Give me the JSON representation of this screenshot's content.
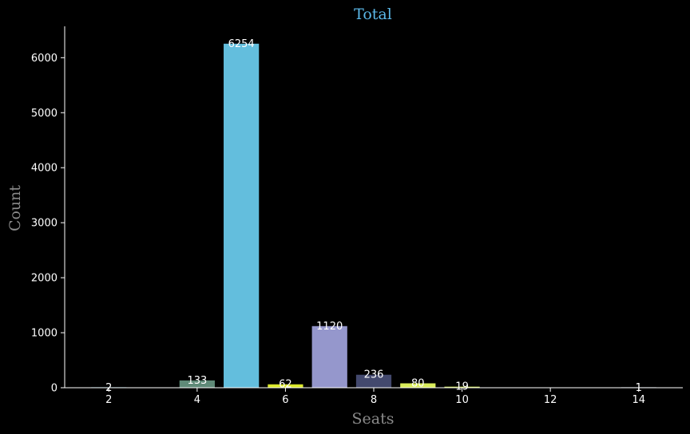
{
  "chart_data": {
    "type": "bar",
    "title": "Total",
    "xlabel": "Seats",
    "ylabel": "Count",
    "x": [
      2,
      4,
      5,
      6,
      7,
      8,
      9,
      10,
      14
    ],
    "values": [
      2,
      133,
      6254,
      62,
      1120,
      236,
      80,
      19,
      1
    ],
    "colors": [
      "#3aa3c3",
      "#5f8a78",
      "#63bedd",
      "#dbe82b",
      "#9597cc",
      "#43496e",
      "#d9ec5a",
      "#d6ec50",
      "#b2cce8"
    ],
    "xlim": [
      1,
      15
    ],
    "ylim": [
      0,
      6570
    ],
    "xticks": [
      2,
      4,
      6,
      8,
      10,
      12,
      14
    ],
    "yticks": [
      0,
      1000,
      2000,
      3000,
      4000,
      5000,
      6000
    ],
    "grid": false,
    "legend": "none",
    "background": "#000000",
    "title_color": "#5bb8e8",
    "axis_label_color": "#8a8a8a"
  }
}
